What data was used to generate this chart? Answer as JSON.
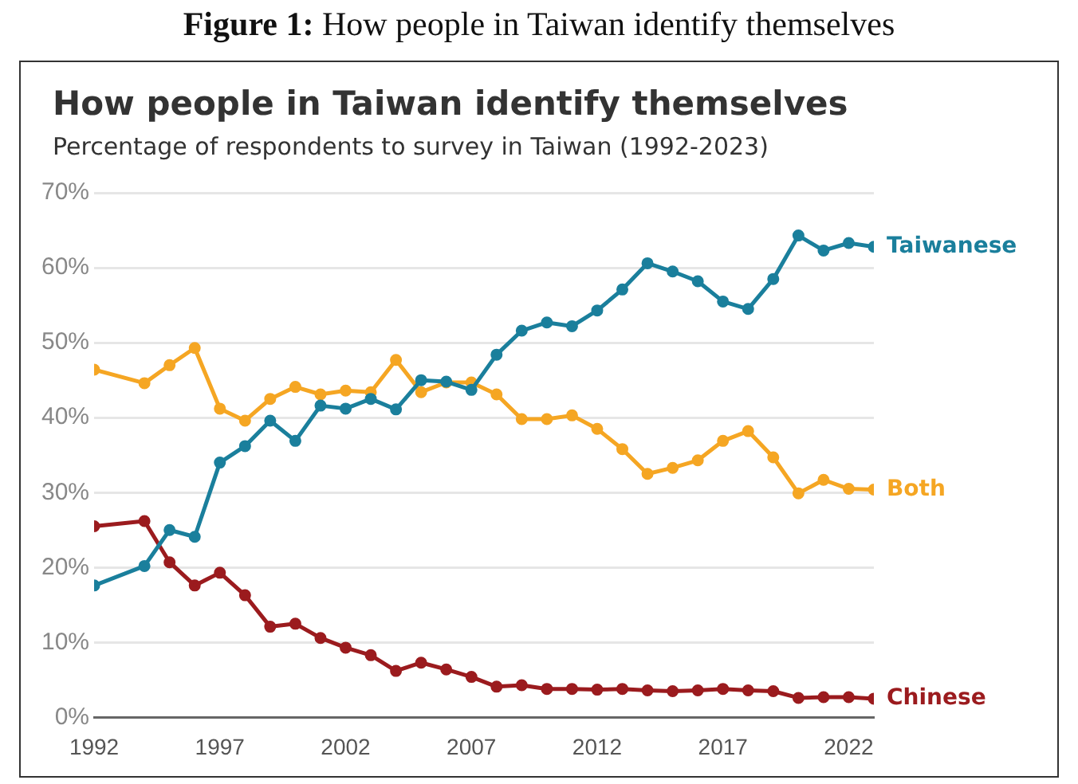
{
  "chart_data": {
    "type": "line",
    "title": "How people in Taiwan identify themselves",
    "subtitle": "Percentage of respondents to survey in Taiwan (1992-2023)",
    "annotations": [
      "Figure 1: How people in Taiwan identify themselves"
    ],
    "x": [
      1992,
      1994,
      1995,
      1996,
      1997,
      1998,
      1999,
      2000,
      2001,
      2002,
      2003,
      2004,
      2005,
      2006,
      2007,
      2008,
      2009,
      2010,
      2011,
      2012,
      2013,
      2014,
      2015,
      2016,
      2017,
      2018,
      2019,
      2020,
      2021,
      2022,
      2023
    ],
    "series": [
      {
        "name": "Taiwanese",
        "color": "#1a7f9c",
        "values": [
          17.6,
          20.2,
          25,
          24.1,
          34,
          36.2,
          39.6,
          36.9,
          41.6,
          41.2,
          42.5,
          41.1,
          45,
          44.8,
          43.7,
          48.4,
          51.6,
          52.7,
          52.2,
          54.3,
          57.1,
          60.6,
          59.5,
          58.2,
          55.5,
          54.5,
          58.5,
          64.3,
          62.3,
          63.3,
          62.8
        ]
      },
      {
        "name": "Both",
        "color": "#f5a623",
        "values": [
          46.4,
          44.6,
          47,
          49.3,
          41.2,
          39.6,
          42.5,
          44.1,
          43.1,
          43.6,
          43.4,
          47.7,
          43.4,
          44.7,
          44.7,
          43.1,
          39.8,
          39.8,
          40.3,
          38.5,
          35.8,
          32.5,
          33.3,
          34.3,
          36.9,
          38.2,
          34.7,
          29.9,
          31.7,
          30.5,
          30.4
        ]
      },
      {
        "name": "Chinese",
        "color": "#9b1b1e",
        "values": [
          25.5,
          26.2,
          20.7,
          17.6,
          19.3,
          16.3,
          12.1,
          12.5,
          10.6,
          9.3,
          8.3,
          6.2,
          7.3,
          6.4,
          5.4,
          4.1,
          4.3,
          3.8,
          3.8,
          3.7,
          3.8,
          3.6,
          3.5,
          3.6,
          3.8,
          3.6,
          3.5,
          2.6,
          2.7,
          2.7,
          2.5
        ]
      }
    ],
    "xlim": [
      1992,
      2023
    ],
    "xticks": [
      1992,
      1997,
      2002,
      2007,
      2012,
      2017,
      2022
    ],
    "ylim": [
      0,
      70
    ],
    "yticks": [
      {
        "value": 0,
        "label": "0%"
      },
      {
        "value": 10,
        "label": "10%"
      },
      {
        "value": 20,
        "label": "20%"
      },
      {
        "value": 30,
        "label": "30%"
      },
      {
        "value": 40,
        "label": "40%"
      },
      {
        "value": 50,
        "label": "50%"
      },
      {
        "value": 60,
        "label": "60%"
      },
      {
        "value": 70,
        "label": "70%"
      }
    ],
    "grid": "y",
    "legend": false,
    "marker": "circle",
    "line_style": "solid"
  }
}
